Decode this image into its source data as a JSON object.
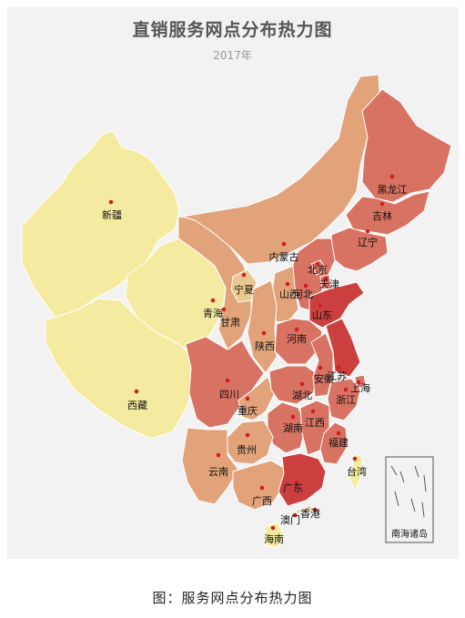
{
  "title": "直销服务网点分布热力图",
  "subtitle": "2017年",
  "inset_label": "南海诸岛",
  "caption": "图：服务网点分布热力图",
  "colors": {
    "panel_background": "#f2f2f2",
    "lowest": "#f5eba0",
    "low": "#e8c890",
    "mid": "#e2a37a",
    "high": "#d87262",
    "highest": "#cc3f3f",
    "marker": "#d11f1f"
  },
  "provinces": [
    {
      "id": "xinjiang",
      "name": "新疆",
      "level": 1
    },
    {
      "id": "xizang",
      "name": "西藏",
      "level": 1
    },
    {
      "id": "qinghai",
      "name": "青海",
      "level": 1
    },
    {
      "id": "gansu",
      "name": "甘肃",
      "level": 3
    },
    {
      "id": "neimenggu",
      "name": "内蒙古",
      "level": 3
    },
    {
      "id": "heilongjiang",
      "name": "黑龙江",
      "level": 4
    },
    {
      "id": "jilin",
      "name": "吉林",
      "level": 4
    },
    {
      "id": "liaoning",
      "name": "辽宁",
      "level": 5
    },
    {
      "id": "beijing",
      "name": "北京",
      "level": 5
    },
    {
      "id": "tianjin",
      "name": "天津",
      "level": 5
    },
    {
      "id": "hebei",
      "name": "河北",
      "level": 5
    },
    {
      "id": "shanxi",
      "name": "山西",
      "level": 3
    },
    {
      "id": "shandong",
      "name": "山东",
      "level": 6
    },
    {
      "id": "ningxia",
      "name": "宁夏",
      "level": 2
    },
    {
      "id": "shaanxi",
      "name": "陕西",
      "level": 3
    },
    {
      "id": "henan",
      "name": "河南",
      "level": 5
    },
    {
      "id": "sichuan",
      "name": "四川",
      "level": 5
    },
    {
      "id": "chongqing",
      "name": "重庆",
      "level": 3
    },
    {
      "id": "hubei",
      "name": "湖北",
      "level": 4
    },
    {
      "id": "anhui",
      "name": "安徽",
      "level": 5
    },
    {
      "id": "jiangsu",
      "name": "江苏",
      "level": 6
    },
    {
      "id": "shanghai",
      "name": "上海",
      "level": 5
    },
    {
      "id": "zhejiang",
      "name": "浙江",
      "level": 5
    },
    {
      "id": "hunan",
      "name": "湖南",
      "level": 4
    },
    {
      "id": "jiangxi",
      "name": "江西",
      "level": 4
    },
    {
      "id": "fujian",
      "name": "福建",
      "level": 4
    },
    {
      "id": "guizhou",
      "name": "贵州",
      "level": 3
    },
    {
      "id": "yunnan",
      "name": "云南",
      "level": 3
    },
    {
      "id": "guangxi",
      "name": "广西",
      "level": 3
    },
    {
      "id": "guangdong",
      "name": "广东",
      "level": 6
    },
    {
      "id": "hainan",
      "name": "海南",
      "level": 1
    },
    {
      "id": "taiwan",
      "name": "台湾",
      "level": 1
    },
    {
      "id": "xianggang",
      "name": "香港",
      "level": 2
    },
    {
      "id": "aomen",
      "name": "澳门",
      "level": 2
    }
  ]
}
